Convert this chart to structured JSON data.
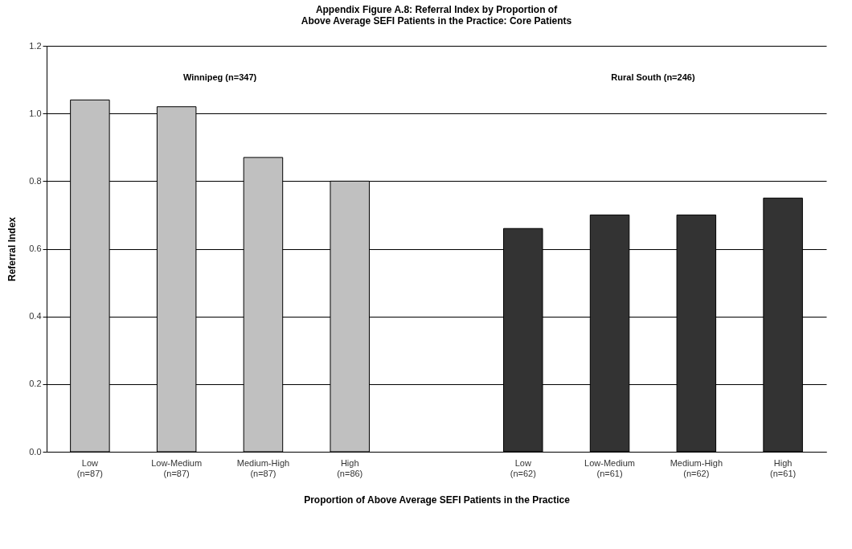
{
  "chart_data": {
    "type": "bar",
    "title": "Appendix Figure A.8:  Referral Index by Proportion of Above Average SEFI Patients in the Practice: Core Patients",
    "xlabel": "Proportion of Above Average SEFI Patients in the Practice",
    "ylabel": "Referral Index",
    "categories": [
      "Low\n(n=87)",
      "Low-Medium\n(n=87)",
      "Medium-High\n(n=87)",
      "High\n(n=86)",
      null,
      "Low\n(n=62)",
      "Low-Medium\n(n=61)",
      "Medium-High\n(n=62)",
      "High\n(n=61)"
    ],
    "values": [
      1.04,
      1.02,
      0.87,
      0.8,
      null,
      0.66,
      0.7,
      0.7,
      0.75
    ],
    "colors": [
      "#c0c0c0",
      "#c0c0c0",
      "#c0c0c0",
      "#c0c0c0",
      "#c0c0c0",
      "#333333",
      "#333333",
      "#333333",
      "#333333"
    ],
    "annotations": [
      "Winnipeg (n=347)",
      "Rural South (n=246)"
    ],
    "ylim": [
      0,
      1.2
    ],
    "yticks": [
      {
        "value": 0,
        "label": "0.0"
      },
      {
        "value": 0.2,
        "label": "0.2"
      },
      {
        "value": 0.4,
        "label": "0.4"
      },
      {
        "value": 0.6,
        "label": "0.6"
      },
      {
        "value": 0.8,
        "label": "0.8"
      },
      {
        "value": 1,
        "label": "1.0"
      },
      {
        "value": 1.2,
        "label": "1.2"
      }
    ],
    "grid": "y"
  }
}
